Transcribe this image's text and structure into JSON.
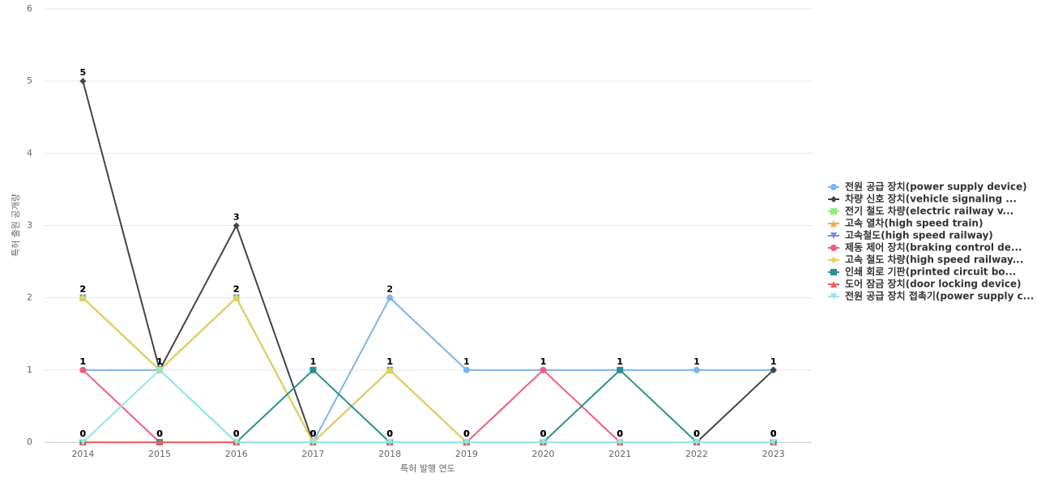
{
  "chart_data": {
    "type": "line",
    "x_label": "특허 발행 연도",
    "y_label": "특허 출원 공개량",
    "categories": [
      "2014",
      "2015",
      "2016",
      "2017",
      "2018",
      "2019",
      "2020",
      "2021",
      "2022",
      "2023"
    ],
    "ylim": [
      0,
      6
    ],
    "yticks": [
      0,
      1,
      2,
      3,
      4,
      5,
      6
    ],
    "grid": true,
    "legend": "right",
    "series": [
      {
        "name": "전원 공급 장치(power supply device)",
        "color": "#7cb5ec",
        "marker": "circle",
        "values": [
          1,
          1,
          0,
          0,
          2,
          1,
          1,
          1,
          1,
          1
        ]
      },
      {
        "name": "차량 신호 장치(vehicle signaling ...",
        "color": "#434348",
        "marker": "diamond",
        "values": [
          5,
          1,
          3,
          0,
          0,
          0,
          0,
          0,
          0,
          1
        ]
      },
      {
        "name": "전기 철도 차량(electric railway v...",
        "color": "#90ed7d",
        "marker": "square",
        "values": [
          2,
          1,
          2,
          0,
          1,
          0,
          0,
          0,
          0,
          0
        ]
      },
      {
        "name": "고속 열차(high speed train)",
        "color": "#f7a35c",
        "marker": "triangle",
        "values": [
          2,
          1,
          2,
          0,
          1,
          0,
          0,
          0,
          0,
          0
        ]
      },
      {
        "name": "고속철도(high speed railway)",
        "color": "#8085e9",
        "marker": "triangle-down",
        "values": [
          2,
          1,
          2,
          0,
          1,
          0,
          0,
          0,
          0,
          0
        ]
      },
      {
        "name": "제동 제어 장치(braking control de...",
        "color": "#f15c80",
        "marker": "circle",
        "values": [
          1,
          0,
          0,
          0,
          0,
          0,
          1,
          0,
          0,
          0
        ]
      },
      {
        "name": "고속 철도 차량(high speed railway...",
        "color": "#e4d354",
        "marker": "diamond",
        "values": [
          2,
          1,
          2,
          0,
          1,
          0,
          0,
          0,
          0,
          0
        ]
      },
      {
        "name": "인쇄 회로 기판(printed circuit bo...",
        "color": "#2b908f",
        "marker": "square",
        "values": [
          0,
          0,
          0,
          1,
          0,
          0,
          0,
          1,
          0,
          0
        ]
      },
      {
        "name": "도어 잠금 장치(door locking device)",
        "color": "#f45b5b",
        "marker": "triangle",
        "values": [
          0,
          0,
          0,
          0,
          0,
          0,
          0,
          0,
          0,
          0
        ]
      },
      {
        "name": "전원 공급 장치 접촉기(power supply c...",
        "color": "#91e8e1",
        "marker": "triangle-down",
        "values": [
          0,
          1,
          0,
          0,
          0,
          0,
          0,
          0,
          0,
          0
        ]
      }
    ]
  }
}
